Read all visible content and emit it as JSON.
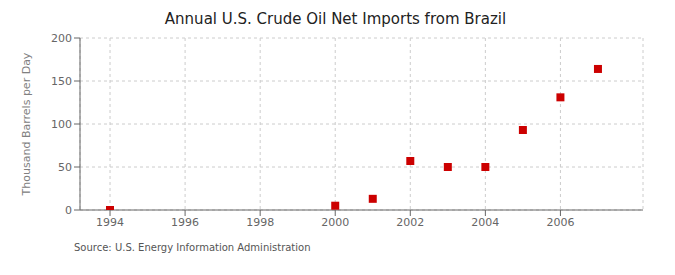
{
  "chart_data": {
    "type": "scatter",
    "title": "Annual U.S. Crude Oil Net Imports from Brazil",
    "ylabel": "Thousand Barrels per Day",
    "annotations": [
      "Source: U.S. Energy Information Administration"
    ],
    "x": [
      1994,
      2000,
      2001,
      2002,
      2003,
      2004,
      2005,
      2006,
      2007
    ],
    "values": [
      0,
      5,
      13,
      57,
      50,
      50,
      93,
      131,
      164
    ],
    "color": "#cc0000",
    "marker": "square",
    "xlim": [
      1993.2,
      2008.2
    ],
    "ylim": [
      0,
      200
    ],
    "xticks": [
      1994,
      1996,
      1998,
      2000,
      2002,
      2004,
      2006
    ],
    "yticks": [
      0,
      50,
      100,
      150,
      200
    ],
    "grid": true
  }
}
